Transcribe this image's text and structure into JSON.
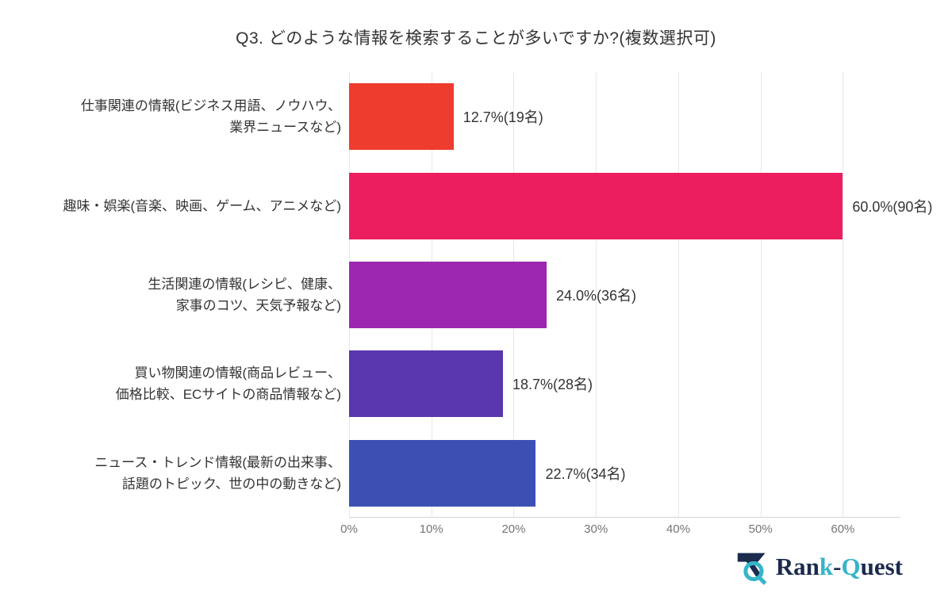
{
  "chart_data": {
    "type": "bar",
    "orientation": "horizontal",
    "title": "Q3. どのような情報を検索することが多いですか?(複数選択可)",
    "categories": [
      "仕事関連の情報(ビジネス用語、ノウハウ、業界ニュースなど)",
      "趣味・娯楽(音楽、映画、ゲーム、アニメなど)",
      "生活関連の情報(レシピ、健康、家事のコツ、天気予報など)",
      "買い物関連の情報(商品レビュー、価格比較、ECサイトの商品情報など)",
      "ニュース・トレンド情報(最新の出来事、話題のトピック、世の中の動きなど)"
    ],
    "category_lines": [
      [
        "仕事関連の情報(ビジネス用語、ノウハウ、",
        "業界ニュースなど)"
      ],
      [
        "趣味・娯楽(音楽、映画、ゲーム、アニメなど)"
      ],
      [
        "生活関連の情報(レシピ、健康、",
        "家事のコツ、天気予報など)"
      ],
      [
        "買い物関連の情報(商品レビュー、",
        "価格比較、ECサイトの商品情報など)"
      ],
      [
        "ニュース・トレンド情報(最新の出来事、",
        "話題のトピック、世の中の動きなど)"
      ]
    ],
    "values": [
      12.7,
      60.0,
      24.0,
      18.7,
      22.7
    ],
    "counts": [
      19,
      90,
      36,
      28,
      34
    ],
    "value_labels": [
      "12.7%(19名)",
      "60.0%(90名)",
      "24.0%(36名)",
      "18.7%(28名)",
      "22.7%(34名)"
    ],
    "bar_colors": [
      "#ee3c2f",
      "#ec1e5f",
      "#9c27b0",
      "#5a37af",
      "#3c50b4"
    ],
    "x_ticks": [
      {
        "value": 0,
        "label": "0%"
      },
      {
        "value": 10,
        "label": "10%"
      },
      {
        "value": 20,
        "label": "20%"
      },
      {
        "value": 30,
        "label": "30%"
      },
      {
        "value": 40,
        "label": "40%"
      },
      {
        "value": 50,
        "label": "50%"
      },
      {
        "value": 60,
        "label": "60%"
      }
    ],
    "xlim": [
      0,
      67
    ],
    "xlabel": "",
    "ylabel": "",
    "grid": "vertical",
    "legend": "none",
    "unit": "%"
  },
  "style": {
    "grid_color": "#e7e7e7",
    "axis_line_color": "#d4d4d4",
    "tick_color": "#757575",
    "text_color": "#333333"
  },
  "logo": {
    "name": "Rank-Quest",
    "navy": "#1b2b4e",
    "teal": "#35b5c8",
    "text_segments": [
      {
        "text": "Ran",
        "color": "#1b2b4e"
      },
      {
        "text": "k",
        "color": "#35b5c8"
      },
      {
        "text": "-",
        "color": "#1b2b4e"
      },
      {
        "text": "Q",
        "color": "#35b5c8"
      },
      {
        "text": "uest",
        "color": "#1b2b4e"
      }
    ]
  }
}
